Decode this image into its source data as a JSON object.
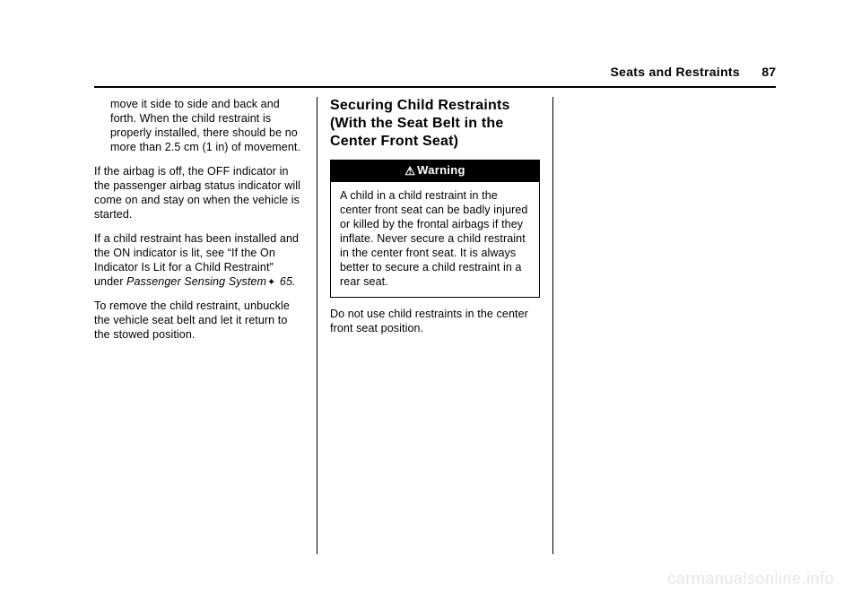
{
  "header": {
    "section": "Seats and Restraints",
    "page": "87"
  },
  "col1": {
    "p1": "move it side to side and back and forth. When the child restraint is properly installed, there should be no more than 2.5 cm (1 in) of movement.",
    "p2": "If the airbag is off, the OFF indicator in the passenger airbag status indicator will come on and stay on when the vehicle is started.",
    "p3a": "If a child restraint has been installed and the ON indicator is lit, see “If the On Indicator Is Lit for a Child Restraint” under ",
    "p3b": "Passenger Sensing System",
    "p3c": " 65.",
    "p4": "To remove the child restraint, unbuckle the vehicle seat belt and let it return to the stowed position."
  },
  "col2": {
    "heading": "Securing Child Restraints (With the Seat Belt in the Center Front Seat)",
    "warnLabel": "Warning",
    "warnBody": "A child in a child restraint in the center front seat can be badly injured or killed by the frontal airbags if they inflate. Never secure a child restraint in the center front seat. It is always better to secure a child restraint in a rear seat.",
    "after": "Do not use child restraints in the center front seat position."
  },
  "watermark": "carmanualsonline.info"
}
